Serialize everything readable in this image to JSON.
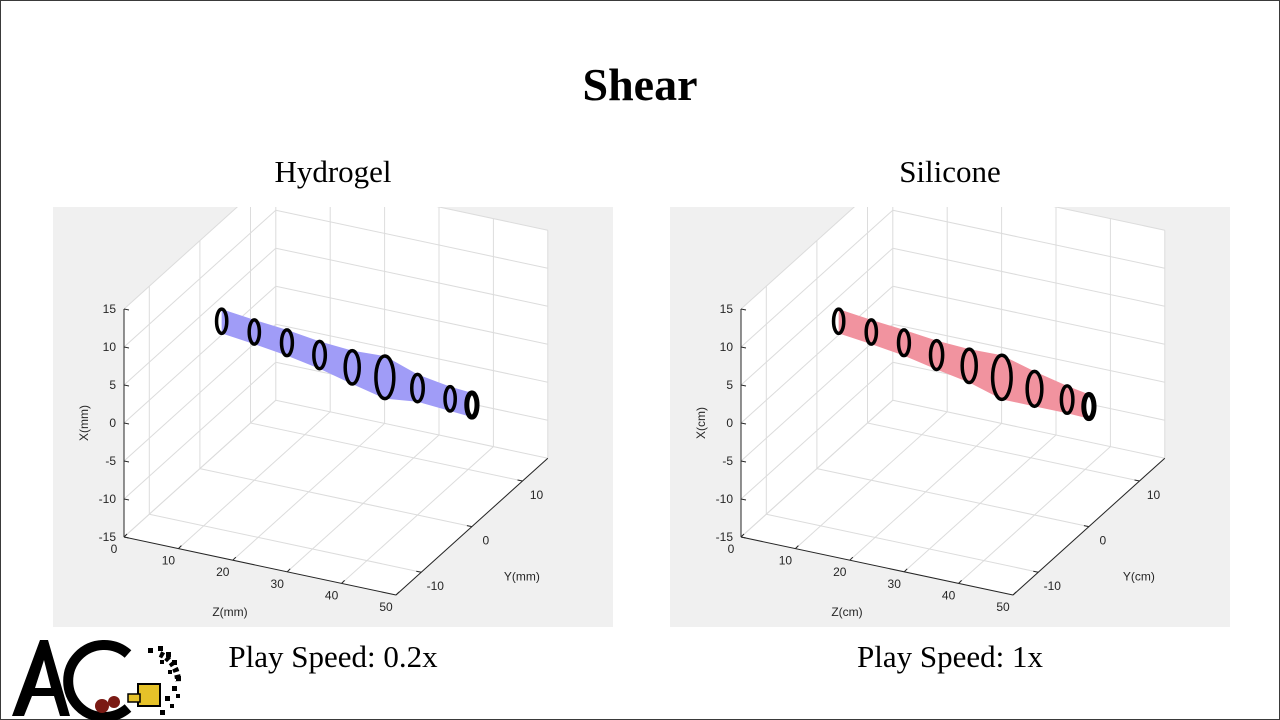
{
  "title": "Shear",
  "panels": [
    {
      "title": "Hydrogel",
      "speed_label": "Play Speed: 0.2x",
      "fill_color": "#a09cf7"
    },
    {
      "title": "Silicone",
      "speed_label": "Play Speed: 1x",
      "fill_color": "#f1939f"
    }
  ],
  "chart_data": [
    {
      "type": "3d-surface",
      "xlabel": "Z(mm)",
      "ylabel": "Y(mm)",
      "zlabel": "X(mm)",
      "z_axis_ticks": [
        0,
        10,
        20,
        30,
        40,
        50
      ],
      "y_axis_ticks": [
        -10,
        0,
        10
      ],
      "x_axis_ticks": [
        -15,
        -10,
        -5,
        0,
        5,
        10,
        15
      ],
      "z_range": [
        0,
        50
      ],
      "y_range": [
        -15,
        15
      ],
      "x_range": [
        -15,
        15
      ],
      "grid": true,
      "tube_rings_z": [
        4,
        10,
        16,
        22,
        28,
        34,
        40,
        46,
        50
      ],
      "tube_center_x": [
        5,
        4.5,
        4,
        3.3,
        2.6,
        2.2,
        1.7,
        1.2,
        1
      ],
      "tube_radius": [
        1.6,
        1.6,
        1.7,
        1.8,
        2.2,
        2.8,
        1.8,
        1.6,
        1.6
      ]
    },
    {
      "type": "3d-surface",
      "xlabel": "Z(cm)",
      "ylabel": "Y(cm)",
      "zlabel": "X(cm)",
      "z_axis_ticks": [
        0,
        10,
        20,
        30,
        40,
        50
      ],
      "y_axis_ticks": [
        -10,
        0,
        10
      ],
      "x_axis_ticks": [
        -15,
        -10,
        -5,
        0,
        5,
        10,
        15
      ],
      "z_range": [
        0,
        50
      ],
      "y_range": [
        -15,
        15
      ],
      "x_range": [
        -15,
        15
      ],
      "grid": true,
      "tube_rings_z": [
        4,
        10,
        16,
        22,
        28,
        34,
        40,
        46,
        50
      ],
      "tube_center_x": [
        5,
        4.5,
        4,
        3.3,
        2.8,
        2.2,
        1.6,
        1.1,
        0.8
      ],
      "tube_radius": [
        1.6,
        1.6,
        1.7,
        1.9,
        2.2,
        2.9,
        2.3,
        1.8,
        1.6
      ]
    }
  ]
}
